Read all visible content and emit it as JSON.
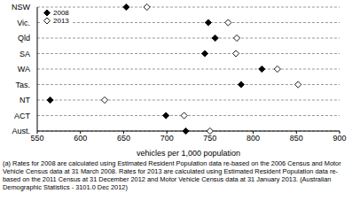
{
  "chart_data": {
    "type": "dot",
    "orientation": "horizontal",
    "categories": [
      "NSW",
      "Vic.",
      "Qld",
      "SA",
      "WA",
      "Tas.",
      "NT",
      "ACT",
      "Aust."
    ],
    "series": [
      {
        "name": "2008",
        "color": "#000000",
        "marker": "diamond",
        "values": [
          653,
          748,
          756,
          744,
          810,
          786,
          565,
          699,
          722
        ]
      },
      {
        "name": "2013",
        "color": "#000000",
        "marker": "open-diamond",
        "values": [
          677,
          771,
          781,
          780,
          828,
          852,
          628,
          720,
          750
        ]
      }
    ],
    "xlabel": "vehicles per 1,000 population",
    "xlim": [
      550,
      900
    ],
    "xticks": [
      550,
      600,
      650,
      700,
      750,
      800,
      850,
      900
    ],
    "grid": true,
    "legend": "top-left",
    "note": "(a) Rates for 2008 are calculated using Estimated Resident Population data re-based on the 2006 Census and Motor Vehicle Census data at 31 March 2008. Rates for 2013 are calculated using Estimated Resident Population data re-based on the 2011 Census at 31 December 2012 and Motor Vehicle Census data at 31 January 2013. (Australian Demographic Statistics - 3101.0 Dec 2012)"
  }
}
